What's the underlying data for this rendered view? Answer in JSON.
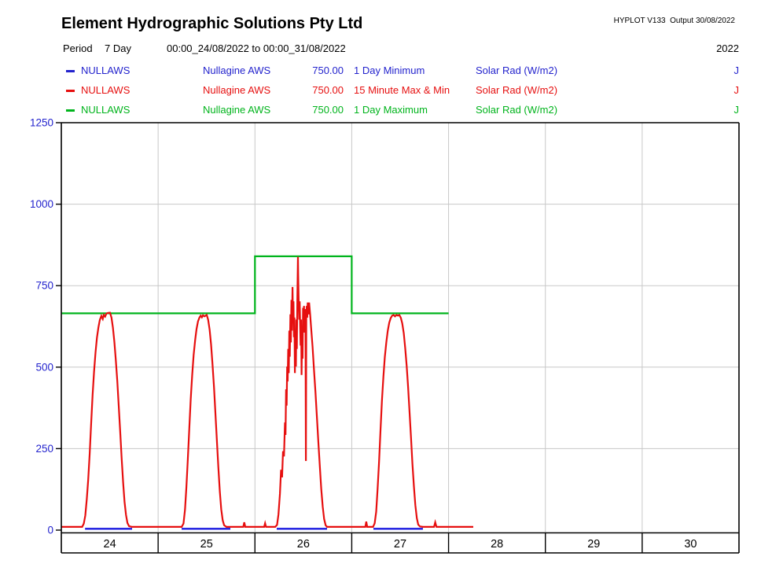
{
  "header": {
    "title": "Element Hydrographic Solutions Pty Ltd",
    "hyplot": "HYPLOT V133  Output 30/08/2022"
  },
  "period": {
    "label": "Period",
    "value": "7 Day",
    "range": "00:00_24/08/2022 to 00:00_31/08/2022",
    "year": "2022"
  },
  "legend": {
    "rows": [
      {
        "color": "#2323cd",
        "id": "NULLAWS",
        "station": "Nullagine AWS",
        "value": "750.00",
        "stat": "1 Day Minimum",
        "param": "Solar Rad (W/m2)",
        "flag": "J"
      },
      {
        "color": "#e60f0f",
        "id": "NULLAWS",
        "station": "Nullagine AWS",
        "value": "750.00",
        "stat": "15 Minute Max & Min",
        "param": "Solar Rad (W/m2)",
        "flag": "J"
      },
      {
        "color": "#00b41c",
        "id": "NULLAWS",
        "station": "Nullagine AWS",
        "value": "750.00",
        "stat": "1 Day Maximum",
        "param": "Solar Rad (W/m2)",
        "flag": "J"
      }
    ]
  },
  "chart_data": {
    "type": "line",
    "title": "",
    "xlabel": "",
    "ylabel": "Solar Rad (W/m2)",
    "x_unit": "days from 24/08/2022 00:00",
    "x_range": [
      0,
      7
    ],
    "ylim": [
      0,
      1250
    ],
    "y_ticks": [
      0,
      250,
      500,
      750,
      1000,
      1250
    ],
    "day_labels": [
      "24",
      "25",
      "26",
      "27",
      "28",
      "29",
      "30"
    ],
    "grid": true,
    "axis_label_color": "#2323cd",
    "grid_color": "#c8c8c8",
    "series": [
      {
        "name": "1 Day Maximum",
        "color": "#00b41c",
        "style": "step",
        "points": [
          [
            0.0,
            665
          ],
          [
            2.0,
            665
          ],
          [
            2.0,
            840
          ],
          [
            3.0,
            840
          ],
          [
            3.0,
            665
          ],
          [
            4.0,
            665
          ]
        ]
      },
      {
        "name": "1 Day Minimum",
        "color": "#1a1ae0",
        "style": "segments",
        "value": 4,
        "segments": [
          [
            0.245,
            0.731
          ],
          [
            1.243,
            1.746
          ],
          [
            2.225,
            2.745
          ],
          [
            3.224,
            3.735
          ]
        ]
      },
      {
        "name": "15 Minute Max & Min",
        "color": "#e60f0f",
        "style": "line",
        "points": [
          [
            0.0,
            10
          ],
          [
            0.215,
            10
          ],
          [
            0.232,
            20
          ],
          [
            0.248,
            45
          ],
          [
            0.263,
            95
          ],
          [
            0.278,
            155
          ],
          [
            0.293,
            235
          ],
          [
            0.308,
            325
          ],
          [
            0.323,
            415
          ],
          [
            0.338,
            485
          ],
          [
            0.353,
            545
          ],
          [
            0.368,
            590
          ],
          [
            0.383,
            622
          ],
          [
            0.398,
            645
          ],
          [
            0.413,
            657
          ],
          [
            0.428,
            648
          ],
          [
            0.438,
            660
          ],
          [
            0.452,
            655
          ],
          [
            0.465,
            664
          ],
          [
            0.48,
            666
          ],
          [
            0.503,
            667
          ],
          [
            0.518,
            652
          ],
          [
            0.533,
            622
          ],
          [
            0.548,
            577
          ],
          [
            0.563,
            522
          ],
          [
            0.578,
            457
          ],
          [
            0.593,
            382
          ],
          [
            0.608,
            302
          ],
          [
            0.623,
            222
          ],
          [
            0.638,
            147
          ],
          [
            0.653,
            87
          ],
          [
            0.668,
            46
          ],
          [
            0.683,
            22
          ],
          [
            0.7,
            12
          ],
          [
            0.73,
            10
          ],
          [
            1.243,
            10
          ],
          [
            1.262,
            20
          ],
          [
            1.277,
            62
          ],
          [
            1.292,
            132
          ],
          [
            1.307,
            217
          ],
          [
            1.322,
            312
          ],
          [
            1.337,
            402
          ],
          [
            1.352,
            477
          ],
          [
            1.367,
            537
          ],
          [
            1.382,
            582
          ],
          [
            1.397,
            617
          ],
          [
            1.412,
            641
          ],
          [
            1.427,
            652
          ],
          [
            1.44,
            658
          ],
          [
            1.452,
            653
          ],
          [
            1.463,
            659
          ],
          [
            1.478,
            656
          ],
          [
            1.502,
            660
          ],
          [
            1.517,
            645
          ],
          [
            1.532,
            614
          ],
          [
            1.547,
            569
          ],
          [
            1.562,
            509
          ],
          [
            1.577,
            439
          ],
          [
            1.592,
            359
          ],
          [
            1.607,
            274
          ],
          [
            1.622,
            194
          ],
          [
            1.637,
            119
          ],
          [
            1.652,
            64
          ],
          [
            1.667,
            30
          ],
          [
            1.682,
            15
          ],
          [
            1.705,
            10
          ],
          [
            1.88,
            10
          ],
          [
            1.89,
            24
          ],
          [
            1.9,
            10
          ],
          [
            2.095,
            10
          ],
          [
            2.105,
            21
          ],
          [
            2.115,
            10
          ],
          [
            2.21,
            10
          ],
          [
            2.228,
            16
          ],
          [
            2.243,
            48
          ],
          [
            2.258,
            112
          ],
          [
            2.27,
            185
          ],
          [
            2.28,
            162
          ],
          [
            2.29,
            242
          ],
          [
            2.3,
            226
          ],
          [
            2.31,
            330
          ],
          [
            2.316,
            292
          ],
          [
            2.322,
            432
          ],
          [
            2.327,
            382
          ],
          [
            2.333,
            502
          ],
          [
            2.338,
            456
          ],
          [
            2.344,
            556
          ],
          [
            2.349,
            482
          ],
          [
            2.355,
            612
          ],
          [
            2.36,
            532
          ],
          [
            2.366,
            662
          ],
          [
            2.371,
            576
          ],
          [
            2.377,
            706
          ],
          [
            2.382,
            612
          ],
          [
            2.388,
            746
          ],
          [
            2.393,
            642
          ],
          [
            2.398,
            702
          ],
          [
            2.403,
            592
          ],
          [
            2.408,
            652
          ],
          [
            2.413,
            482
          ],
          [
            2.418,
            592
          ],
          [
            2.423,
            502
          ],
          [
            2.428,
            646
          ],
          [
            2.433,
            556
          ],
          [
            2.438,
            706
          ],
          [
            2.441,
            772
          ],
          [
            2.444,
            838
          ],
          [
            2.447,
            782
          ],
          [
            2.452,
            706
          ],
          [
            2.457,
            646
          ],
          [
            2.462,
            702
          ],
          [
            2.467,
            626
          ],
          [
            2.472,
            566
          ],
          [
            2.477,
            646
          ],
          [
            2.482,
            476
          ],
          [
            2.487,
            606
          ],
          [
            2.492,
            526
          ],
          [
            2.497,
            682
          ],
          [
            2.502,
            626
          ],
          [
            2.507,
            688
          ],
          [
            2.512,
            606
          ],
          [
            2.517,
            678
          ],
          [
            2.522,
            646
          ],
          [
            2.526,
            212
          ],
          [
            2.53,
            656
          ],
          [
            2.535,
            688
          ],
          [
            2.54,
            652
          ],
          [
            2.545,
            698
          ],
          [
            2.55,
            688
          ],
          [
            2.555,
            662
          ],
          [
            2.56,
            698
          ],
          [
            2.57,
            662
          ],
          [
            2.58,
            622
          ],
          [
            2.595,
            562
          ],
          [
            2.61,
            492
          ],
          [
            2.625,
            422
          ],
          [
            2.64,
            347
          ],
          [
            2.655,
            272
          ],
          [
            2.67,
            197
          ],
          [
            2.685,
            127
          ],
          [
            2.7,
            72
          ],
          [
            2.715,
            34
          ],
          [
            2.73,
            15
          ],
          [
            2.745,
            10
          ],
          [
            3.14,
            10
          ],
          [
            3.15,
            26
          ],
          [
            3.16,
            10
          ],
          [
            3.22,
            10
          ],
          [
            3.237,
            21
          ],
          [
            3.252,
            56
          ],
          [
            3.267,
            126
          ],
          [
            3.282,
            211
          ],
          [
            3.297,
            306
          ],
          [
            3.312,
            396
          ],
          [
            3.327,
            471
          ],
          [
            3.342,
            531
          ],
          [
            3.357,
            576
          ],
          [
            3.372,
            611
          ],
          [
            3.387,
            636
          ],
          [
            3.402,
            650
          ],
          [
            3.417,
            658
          ],
          [
            3.432,
            660
          ],
          [
            3.447,
            656
          ],
          [
            3.462,
            660
          ],
          [
            3.477,
            658
          ],
          [
            3.492,
            660
          ],
          [
            3.507,
            651
          ],
          [
            3.522,
            634
          ],
          [
            3.537,
            604
          ],
          [
            3.552,
            559
          ],
          [
            3.567,
            504
          ],
          [
            3.582,
            439
          ],
          [
            3.597,
            364
          ],
          [
            3.612,
            284
          ],
          [
            3.627,
            204
          ],
          [
            3.642,
            134
          ],
          [
            3.657,
            77
          ],
          [
            3.672,
            37
          ],
          [
            3.687,
            17
          ],
          [
            3.705,
            11
          ],
          [
            3.735,
            10
          ],
          [
            3.85,
            10
          ],
          [
            3.862,
            24
          ],
          [
            3.875,
            10
          ],
          [
            4.255,
            10
          ]
        ]
      }
    ]
  }
}
